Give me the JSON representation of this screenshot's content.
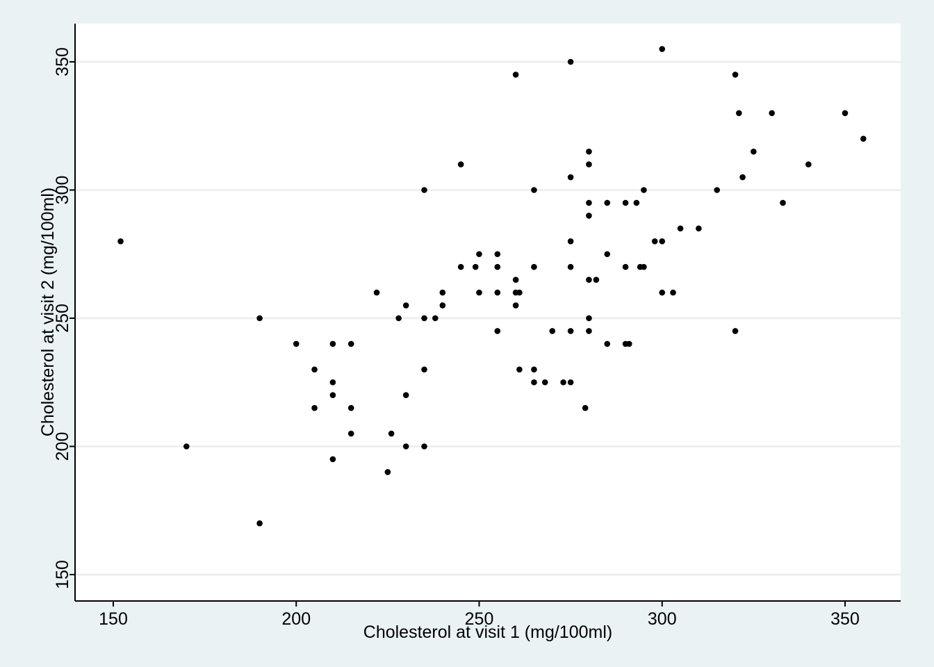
{
  "chart_data": {
    "type": "scatter",
    "xlabel": "Cholesterol at visit 1 (mg/100ml)",
    "ylabel": "Cholesterol at visit 2 (mg/100ml)",
    "xlim": [
      140,
      366
    ],
    "ylim": [
      140,
      366
    ],
    "xticks": [
      150,
      200,
      250,
      300,
      350
    ],
    "yticks": [
      150,
      200,
      250,
      300,
      350
    ],
    "grid": "horizontal",
    "colors": {
      "background": "#eaf2f3",
      "plot_area": "#ffffff",
      "gridline": "#e8eef0",
      "marker": "#000000"
    },
    "points": [
      [
        152,
        280
      ],
      [
        170,
        200
      ],
      [
        190,
        250
      ],
      [
        190,
        170
      ],
      [
        200,
        240
      ],
      [
        205,
        230
      ],
      [
        205,
        215
      ],
      [
        210,
        240
      ],
      [
        210,
        225
      ],
      [
        210,
        220
      ],
      [
        210,
        195
      ],
      [
        215,
        240
      ],
      [
        215,
        215
      ],
      [
        215,
        205
      ],
      [
        222,
        260
      ],
      [
        225,
        190
      ],
      [
        226,
        205
      ],
      [
        228,
        250
      ],
      [
        230,
        255
      ],
      [
        230,
        220
      ],
      [
        230,
        200
      ],
      [
        235,
        300
      ],
      [
        235,
        250
      ],
      [
        235,
        230
      ],
      [
        235,
        200
      ],
      [
        238,
        250
      ],
      [
        240,
        260
      ],
      [
        240,
        255
      ],
      [
        245,
        310
      ],
      [
        245,
        270
      ],
      [
        249,
        270
      ],
      [
        250,
        275
      ],
      [
        250,
        260
      ],
      [
        255,
        275
      ],
      [
        255,
        270
      ],
      [
        255,
        260
      ],
      [
        255,
        245
      ],
      [
        260,
        345
      ],
      [
        260,
        265
      ],
      [
        260,
        260
      ],
      [
        260,
        255
      ],
      [
        261,
        260
      ],
      [
        261,
        230
      ],
      [
        265,
        300
      ],
      [
        265,
        270
      ],
      [
        265,
        230
      ],
      [
        265,
        225
      ],
      [
        268,
        225
      ],
      [
        270,
        245
      ],
      [
        273,
        225
      ],
      [
        275,
        350
      ],
      [
        275,
        305
      ],
      [
        275,
        280
      ],
      [
        275,
        270
      ],
      [
        275,
        245
      ],
      [
        275,
        225
      ],
      [
        279,
        215
      ],
      [
        280,
        315
      ],
      [
        280,
        310
      ],
      [
        280,
        295
      ],
      [
        280,
        290
      ],
      [
        280,
        265
      ],
      [
        280,
        250
      ],
      [
        280,
        245
      ],
      [
        282,
        265
      ],
      [
        285,
        295
      ],
      [
        285,
        275
      ],
      [
        285,
        240
      ],
      [
        290,
        295
      ],
      [
        290,
        270
      ],
      [
        290,
        240
      ],
      [
        291,
        240
      ],
      [
        293,
        295
      ],
      [
        294,
        270
      ],
      [
        295,
        300
      ],
      [
        295,
        270
      ],
      [
        298,
        280
      ],
      [
        300,
        355
      ],
      [
        300,
        280
      ],
      [
        300,
        260
      ],
      [
        303,
        260
      ],
      [
        305,
        285
      ],
      [
        310,
        285
      ],
      [
        315,
        300
      ],
      [
        320,
        345
      ],
      [
        320,
        245
      ],
      [
        321,
        330
      ],
      [
        322,
        305
      ],
      [
        325,
        315
      ],
      [
        330,
        330
      ],
      [
        333,
        295
      ],
      [
        340,
        310
      ],
      [
        350,
        330
      ],
      [
        355,
        320
      ]
    ]
  }
}
